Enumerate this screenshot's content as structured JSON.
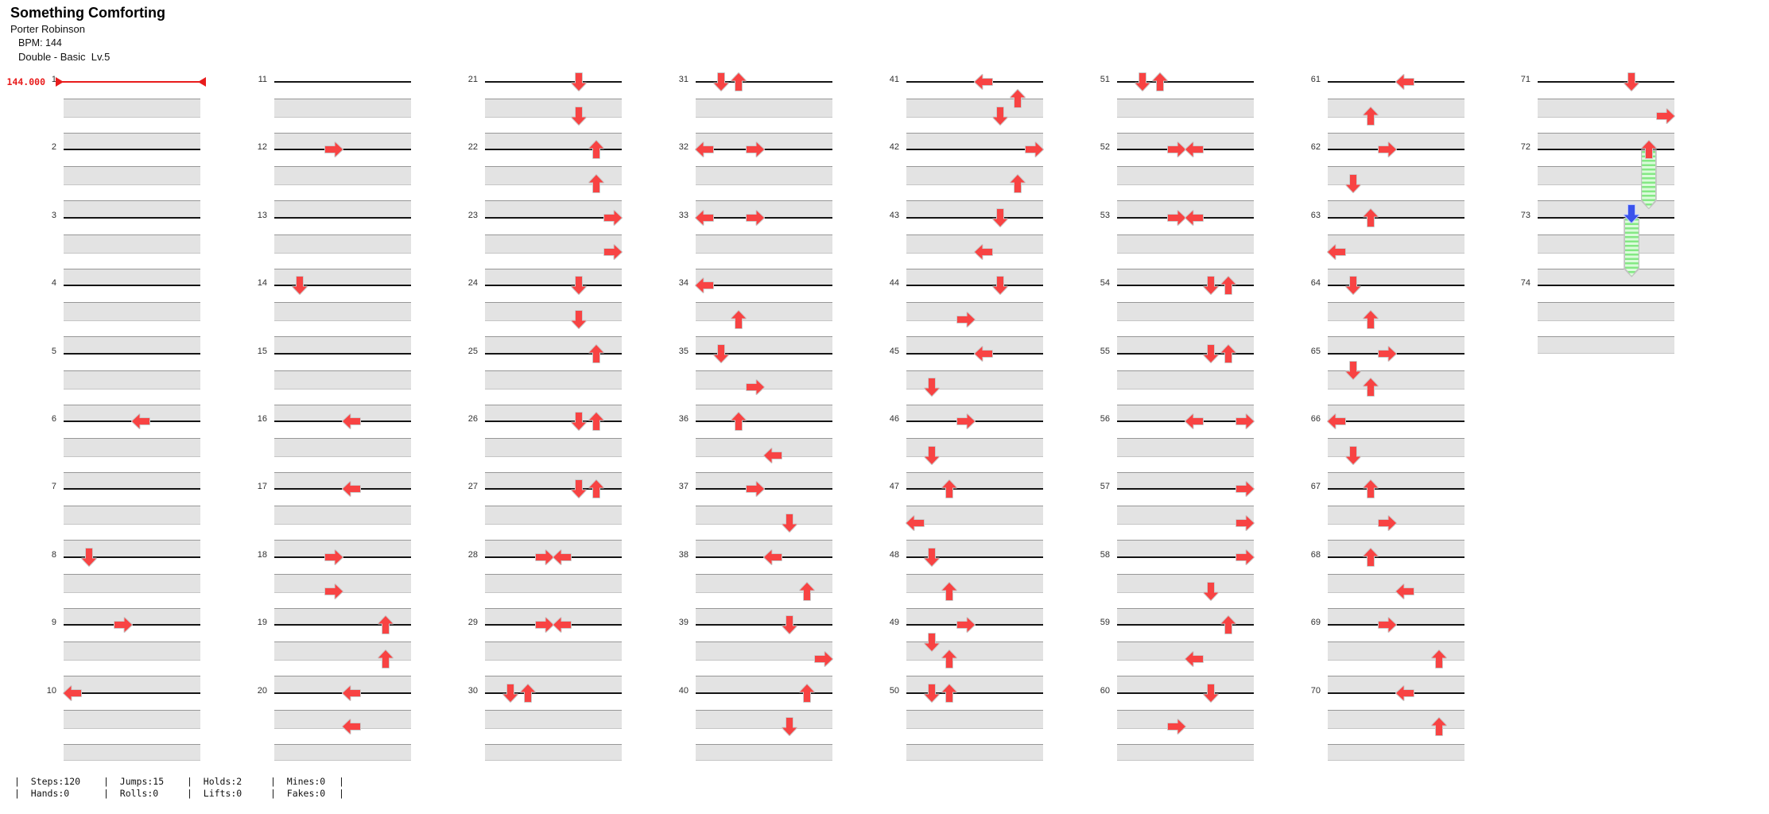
{
  "song": {
    "title": "Something Comforting",
    "artist": "Porter Robinson",
    "bpm_label": "BPM: 144",
    "difficulty_label": "Double - Basic  Lv.5"
  },
  "bpm_marker": {
    "text": "144.000",
    "measure": 1,
    "color": "#e81c1c"
  },
  "stats": {
    "groups": [
      {
        "top_label": "Steps",
        "top_value": "120",
        "bottom_label": "Hands",
        "bottom_value": "0"
      },
      {
        "top_label": "Jumps",
        "top_value": "15",
        "bottom_label": "Rolls",
        "bottom_value": "0"
      },
      {
        "top_label": "Holds",
        "top_value": "2",
        "bottom_label": "Lifts",
        "bottom_value": "0"
      },
      {
        "top_label": "Mines",
        "top_value": "0",
        "bottom_label": "Fakes",
        "bottom_value": "0"
      }
    ]
  },
  "chart_data": {
    "type": "step_chart",
    "mode": "double",
    "panels": 8,
    "measure_count": 74,
    "measures_per_column": 10,
    "beats_per_measure": 4,
    "panel_directions": [
      "left",
      "down",
      "up",
      "right",
      "left",
      "down",
      "up",
      "right"
    ],
    "colors": {
      "tap_arrow": "#f84343",
      "arrow_outline": "#cbcbcb",
      "hold_head_blue": "#3b53ec",
      "blue_outline": "#b9c4ff",
      "hold_body_dark": "#84e884",
      "hold_body_light": "#dbfbdb",
      "bpm_line": "#e81c1c",
      "beat_band": "#e3e3e3",
      "measure_line": "#141414"
    },
    "notes_format": [
      "measure",
      "beat",
      "column"
    ],
    "notes": [
      [
        6,
        0,
        4
      ],
      [
        8,
        0,
        1
      ],
      [
        9,
        0,
        3
      ],
      [
        10,
        0,
        0
      ],
      [
        12,
        0,
        3
      ],
      [
        14,
        0,
        1
      ],
      [
        16,
        0,
        4
      ],
      [
        17,
        0,
        4
      ],
      [
        18,
        0,
        3
      ],
      [
        18,
        2,
        3
      ],
      [
        19,
        0,
        6
      ],
      [
        19,
        2,
        6
      ],
      [
        20,
        0,
        4
      ],
      [
        20,
        2,
        4
      ],
      [
        21,
        0,
        5
      ],
      [
        21,
        2,
        5
      ],
      [
        22,
        0,
        6
      ],
      [
        22,
        2,
        6
      ],
      [
        23,
        0,
        7
      ],
      [
        23,
        2,
        7
      ],
      [
        24,
        0,
        5
      ],
      [
        24,
        2,
        5
      ],
      [
        25,
        0,
        6
      ],
      [
        26,
        0,
        5
      ],
      [
        26,
        0,
        6
      ],
      [
        27,
        0,
        5
      ],
      [
        27,
        0,
        6
      ],
      [
        28,
        0,
        3
      ],
      [
        28,
        0,
        4
      ],
      [
        29,
        0,
        3
      ],
      [
        29,
        0,
        4
      ],
      [
        30,
        0,
        1
      ],
      [
        30,
        0,
        2
      ],
      [
        31,
        0,
        1
      ],
      [
        31,
        0,
        2
      ],
      [
        32,
        0,
        0
      ],
      [
        32,
        0,
        3
      ],
      [
        33,
        0,
        0
      ],
      [
        33,
        0,
        3
      ],
      [
        34,
        0,
        0
      ],
      [
        34,
        2,
        2
      ],
      [
        35,
        0,
        1
      ],
      [
        35,
        2,
        3
      ],
      [
        36,
        0,
        2
      ],
      [
        36,
        2,
        4
      ],
      [
        37,
        0,
        3
      ],
      [
        37,
        2,
        5
      ],
      [
        38,
        0,
        4
      ],
      [
        38,
        2,
        6
      ],
      [
        39,
        0,
        5
      ],
      [
        39,
        2,
        7
      ],
      [
        40,
        0,
        6
      ],
      [
        40,
        2,
        5
      ],
      [
        41,
        0,
        4
      ],
      [
        41,
        1,
        6
      ],
      [
        41,
        2,
        5
      ],
      [
        42,
        0,
        7
      ],
      [
        42,
        2,
        6
      ],
      [
        43,
        0,
        5
      ],
      [
        43,
        2,
        4
      ],
      [
        44,
        0,
        5
      ],
      [
        44,
        2,
        3
      ],
      [
        45,
        0,
        4
      ],
      [
        45,
        2,
        1
      ],
      [
        46,
        0,
        3
      ],
      [
        46,
        2,
        1
      ],
      [
        47,
        0,
        2
      ],
      [
        47,
        2,
        0
      ],
      [
        48,
        0,
        1
      ],
      [
        48,
        2,
        2
      ],
      [
        49,
        0,
        3
      ],
      [
        49,
        1,
        1
      ],
      [
        49,
        2,
        2
      ],
      [
        50,
        0,
        1
      ],
      [
        50,
        0,
        2
      ],
      [
        51,
        0,
        1
      ],
      [
        51,
        0,
        2
      ],
      [
        52,
        0,
        3
      ],
      [
        52,
        0,
        4
      ],
      [
        53,
        0,
        3
      ],
      [
        53,
        0,
        4
      ],
      [
        54,
        0,
        5
      ],
      [
        54,
        0,
        6
      ],
      [
        55,
        0,
        5
      ],
      [
        55,
        0,
        6
      ],
      [
        56,
        0,
        4
      ],
      [
        56,
        0,
        7
      ],
      [
        57,
        0,
        7
      ],
      [
        57,
        2,
        7
      ],
      [
        58,
        0,
        7
      ],
      [
        58,
        2,
        5
      ],
      [
        59,
        0,
        6
      ],
      [
        59,
        2,
        4
      ],
      [
        60,
        0,
        5
      ],
      [
        60,
        2,
        3
      ],
      [
        61,
        0,
        4
      ],
      [
        61,
        2,
        2
      ],
      [
        62,
        0,
        3
      ],
      [
        62,
        2,
        1
      ],
      [
        63,
        0,
        2
      ],
      [
        63,
        2,
        0
      ],
      [
        64,
        0,
        1
      ],
      [
        64,
        2,
        2
      ],
      [
        65,
        0,
        3
      ],
      [
        65,
        1,
        1
      ],
      [
        65,
        2,
        2
      ],
      [
        66,
        0,
        0
      ],
      [
        66,
        2,
        1
      ],
      [
        67,
        0,
        2
      ],
      [
        67,
        2,
        3
      ],
      [
        68,
        0,
        2
      ],
      [
        68,
        2,
        4
      ],
      [
        69,
        0,
        3
      ],
      [
        69,
        2,
        6
      ],
      [
        70,
        0,
        4
      ],
      [
        70,
        2,
        6
      ],
      [
        71,
        0,
        5
      ],
      [
        71,
        2,
        7
      ]
    ],
    "holds": [
      {
        "measure": 72,
        "beat": 0,
        "col": 6,
        "length_beats": 3,
        "head_color": "red",
        "head_dir": "up"
      },
      {
        "measure": 73,
        "beat": 0,
        "col": 5,
        "length_beats": 3,
        "head_color": "blue",
        "head_dir": "down"
      }
    ]
  }
}
